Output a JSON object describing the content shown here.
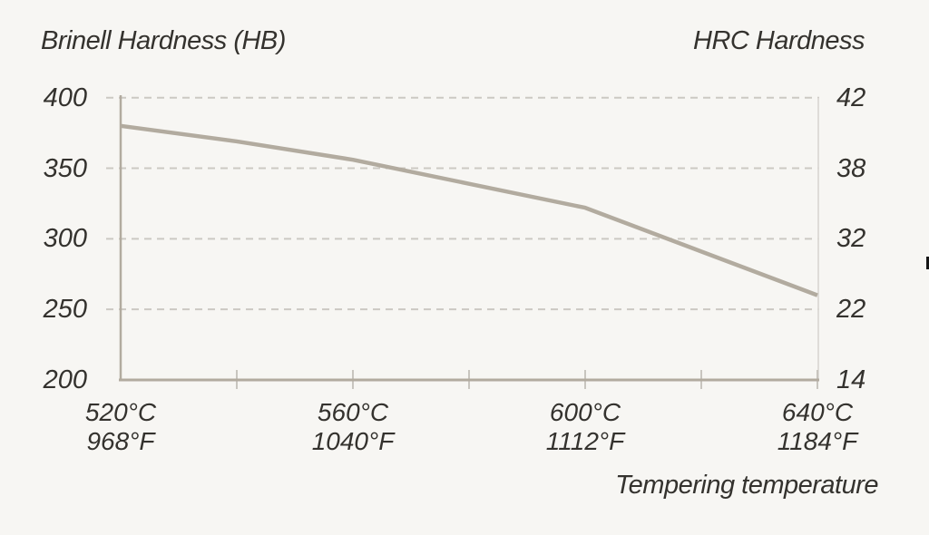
{
  "colors": {
    "background": "#f7f6f3",
    "series_line": "#b2ab9f",
    "axis": "#b2ab9f",
    "grid_dash": "#ccc9c3",
    "minor_tick": "#c8c5bf",
    "right_axis_line": "#dcdad5",
    "text": "#34322e",
    "edge_mark": "#151515"
  },
  "chart_data": {
    "type": "line",
    "title_left": "Brinell Hardness (HB)",
    "title_right": "HRC Hardness",
    "xlabel": "Tempering temperature",
    "xlim": [
      520,
      640
    ],
    "ylim": [
      200,
      400
    ],
    "grid": "horizontal-dashed",
    "legend": "none",
    "x_tick_labels": [
      {
        "value": 520,
        "celsius": "520°C",
        "fahrenheit": "968°F"
      },
      {
        "value": 560,
        "celsius": "560°C",
        "fahrenheit": "1040°F"
      },
      {
        "value": 600,
        "celsius": "600°C",
        "fahrenheit": "1112°F"
      },
      {
        "value": 640,
        "celsius": "640°C",
        "fahrenheit": "1184°F"
      }
    ],
    "x_minor_ticks": [
      540,
      560,
      580,
      600,
      620,
      640
    ],
    "y_left_ticks": [
      {
        "label": "400",
        "value": 400
      },
      {
        "label": "350",
        "value": 350
      },
      {
        "label": "300",
        "value": 300
      },
      {
        "label": "250",
        "value": 250
      },
      {
        "label": "200",
        "value": 200
      }
    ],
    "y_right_ticks": [
      {
        "label": "42",
        "at_hb": 400
      },
      {
        "label": "38",
        "at_hb": 350
      },
      {
        "label": "32",
        "at_hb": 300
      },
      {
        "label": "22",
        "at_hb": 250
      },
      {
        "label": "14",
        "at_hb": 200
      }
    ],
    "series": [
      {
        "name": "hardness-vs-tempering-temperature",
        "x": [
          520,
          540,
          560,
          580,
          600,
          620,
          640
        ],
        "y": [
          380,
          369,
          356,
          339,
          322,
          291,
          260
        ]
      }
    ]
  }
}
